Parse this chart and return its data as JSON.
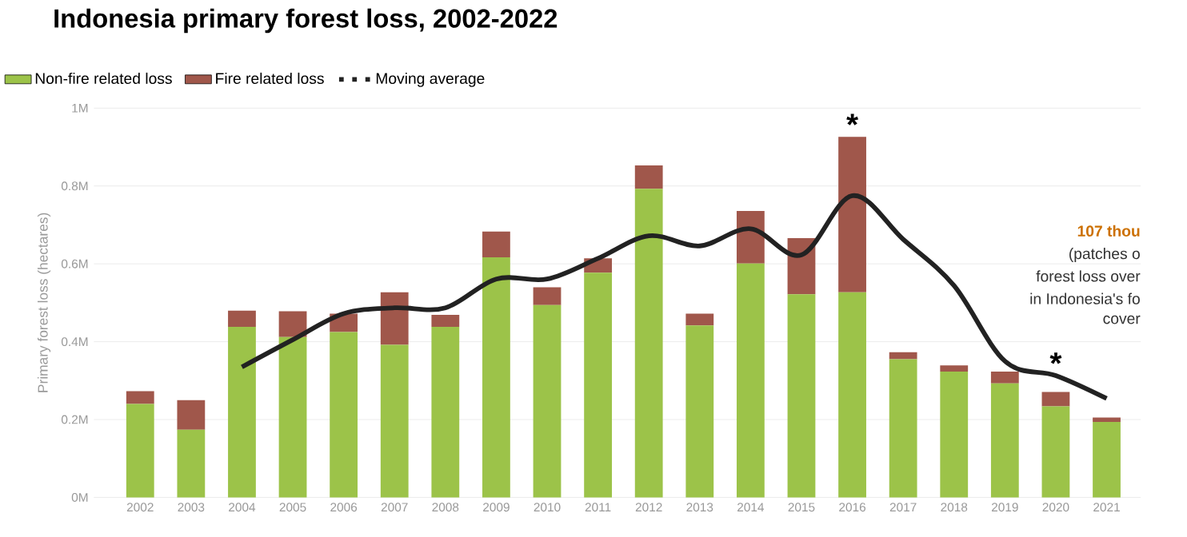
{
  "chart_data": {
    "type": "bar",
    "title": "Indonesia primary forest loss, 2002-2022",
    "ylabel": "Primary forest loss (hectares)",
    "stacked": true,
    "categories": [
      "2002",
      "2003",
      "2004",
      "2005",
      "2006",
      "2007",
      "2008",
      "2009",
      "2010",
      "2011",
      "2012",
      "2013",
      "2014",
      "2015",
      "2016",
      "2017",
      "2018",
      "2019",
      "2020",
      "2021"
    ],
    "series": [
      {
        "name": "Non-fire related loss",
        "color": "#9cc349",
        "values": [
          0.24,
          0.174,
          0.438,
          0.412,
          0.425,
          0.392,
          0.438,
          0.617,
          0.494,
          0.577,
          0.793,
          0.442,
          0.601,
          0.522,
          0.527,
          0.355,
          0.323,
          0.293,
          0.234,
          0.194
        ]
      },
      {
        "name": "Fire related loss",
        "color": "#a0574b",
        "values": [
          0.033,
          0.076,
          0.042,
          0.066,
          0.047,
          0.135,
          0.031,
          0.066,
          0.046,
          0.037,
          0.06,
          0.03,
          0.135,
          0.144,
          0.399,
          0.018,
          0.016,
          0.03,
          0.037,
          0.011
        ]
      },
      {
        "name": "Moving average",
        "type": "line",
        "color": "#222222",
        "values": [
          null,
          null,
          0.335,
          0.405,
          0.472,
          0.487,
          0.487,
          0.561,
          0.561,
          0.614,
          0.672,
          0.646,
          0.69,
          0.623,
          0.775,
          0.663,
          0.544,
          0.35,
          0.313,
          0.254
        ]
      }
    ],
    "ylim": [
      0,
      1
    ],
    "yticks": [
      {
        "value": 0,
        "label": "0M"
      },
      {
        "value": 0.2,
        "label": "0.2M"
      },
      {
        "value": 0.4,
        "label": "0.4M"
      },
      {
        "value": 0.6,
        "label": "0.6M"
      },
      {
        "value": 0.8,
        "label": "0.8M"
      },
      {
        "value": 1,
        "label": "1M"
      }
    ],
    "grid": "y",
    "legend": "top left",
    "marker": "none",
    "annotations": [
      {
        "text": "*",
        "x": "2016",
        "y": 0.926
      },
      {
        "text": "*",
        "x": "2020",
        "y": 0.313
      },
      "107 thou",
      "(patches o",
      "forest loss over",
      "in Indonesia's fo",
      "cover"
    ]
  }
}
